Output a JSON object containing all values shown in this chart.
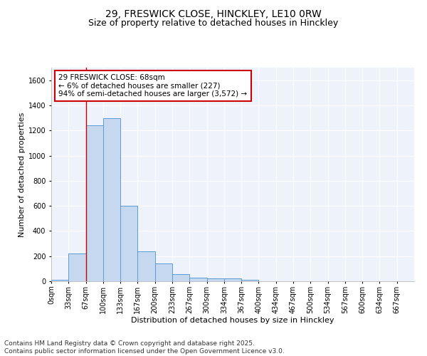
{
  "title": "29, FRESWICK CLOSE, HINCKLEY, LE10 0RW",
  "subtitle": "Size of property relative to detached houses in Hinckley",
  "xlabel": "Distribution of detached houses by size in Hinckley",
  "ylabel": "Number of detached properties",
  "bar_color": "#c5d8f0",
  "bar_edge_color": "#5b9bd5",
  "background_color": "#eef2fa",
  "grid_color": "#ffffff",
  "categories": [
    "0sqm",
    "33sqm",
    "67sqm",
    "100sqm",
    "133sqm",
    "167sqm",
    "200sqm",
    "233sqm",
    "267sqm",
    "300sqm",
    "334sqm",
    "367sqm",
    "400sqm",
    "434sqm",
    "467sqm",
    "500sqm",
    "534sqm",
    "567sqm",
    "600sqm",
    "634sqm",
    "667sqm"
  ],
  "values": [
    10,
    220,
    1240,
    1300,
    600,
    240,
    140,
    55,
    30,
    25,
    20,
    10,
    0,
    0,
    0,
    0,
    0,
    0,
    0,
    0,
    0
  ],
  "ylim": [
    0,
    1700
  ],
  "yticks": [
    0,
    200,
    400,
    600,
    800,
    1000,
    1200,
    1400,
    1600
  ],
  "red_line_x": 2.0,
  "annotation_text": "29 FRESWICK CLOSE: 68sqm\n← 6% of detached houses are smaller (227)\n94% of semi-detached houses are larger (3,572) →",
  "annotation_box_color": "#ffffff",
  "annotation_border_color": "#cc0000",
  "footer_text": "Contains HM Land Registry data © Crown copyright and database right 2025.\nContains public sector information licensed under the Open Government Licence v3.0.",
  "title_fontsize": 10,
  "subtitle_fontsize": 9,
  "axis_label_fontsize": 8,
  "tick_fontsize": 7,
  "footer_fontsize": 6.5,
  "annotation_fontsize": 7.5
}
